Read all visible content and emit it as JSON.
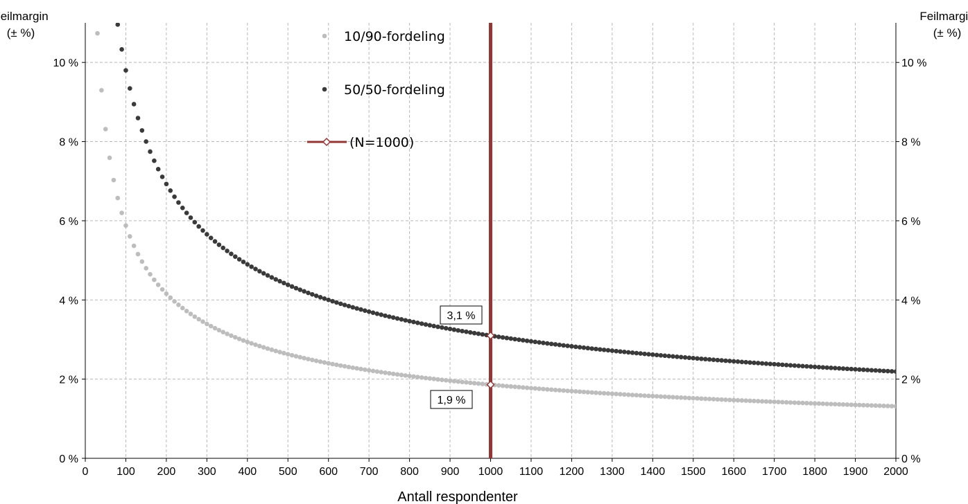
{
  "chart_data": {
    "type": "scatter",
    "title": "",
    "xlabel": "Antall respondenter",
    "ylabel_left": [
      "Feilmargin",
      "(± %)"
    ],
    "ylabel_right": [
      "Feilmargin",
      "(± %)"
    ],
    "xlim": [
      0,
      2000
    ],
    "ylim": [
      0,
      11
    ],
    "x_ticks": [
      0,
      100,
      200,
      300,
      400,
      500,
      600,
      700,
      800,
      900,
      1000,
      1100,
      1200,
      1300,
      1400,
      1500,
      1600,
      1700,
      1800,
      1900,
      2000
    ],
    "x_tick_labels": [
      "0",
      "100",
      "200",
      "300",
      "400",
      "500",
      "600",
      "700",
      "800",
      "900",
      "1000",
      "1100",
      "1200",
      "1300",
      "1400",
      "1500",
      "1600",
      "1700",
      "1800",
      "1900",
      "2000"
    ],
    "y_ticks": [
      0,
      2,
      4,
      6,
      8,
      10
    ],
    "y_tick_labels": [
      "0 %",
      "2 %",
      "4 %",
      "6 %",
      "8 %",
      "10 %"
    ],
    "grid": true,
    "legend_position": "top-center",
    "series": [
      {
        "name": "10/90-fordeling",
        "color": "#bdbdbd",
        "p": 0.1,
        "z": 1.96,
        "x_start": 30,
        "x_end": 2000,
        "step": 10
      },
      {
        "name": "50/50-fordeling",
        "color": "#3a3a3a",
        "p": 0.5,
        "z": 1.96,
        "x_start": 80,
        "x_end": 2000,
        "step": 10
      }
    ],
    "reference_line": {
      "name": "(N=1000)",
      "x": 1000,
      "color": "#943634"
    },
    "annotations": [
      {
        "label": "3,1 %",
        "x": 1000,
        "y": 3.1
      },
      {
        "label": "1,9 %",
        "x": 1000,
        "y": 1.86
      }
    ]
  }
}
